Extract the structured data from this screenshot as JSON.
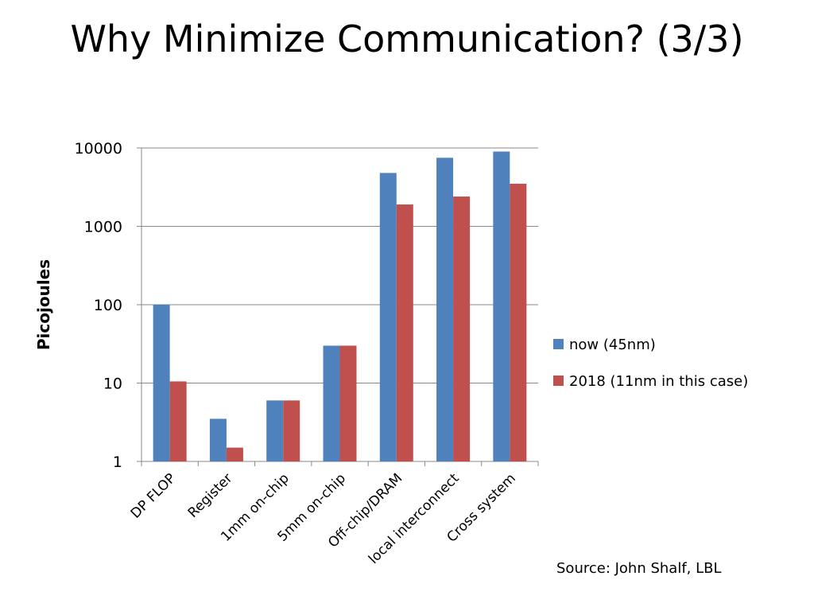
{
  "slide": {
    "title": "Why Minimize Communication? (3/3)",
    "source": "Source: John Shalf, LBL"
  },
  "chart_data": {
    "type": "bar",
    "scale": "log",
    "ylabel": "Picojoules",
    "ylim": [
      1,
      10000
    ],
    "yticks": [
      "1",
      "10",
      "100",
      "1000",
      "10000"
    ],
    "grid": true,
    "legend_position": "right",
    "categories": [
      "DP FLOP",
      "Register",
      "1mm on-chip",
      "5mm on-chip",
      "Off-chip/DRAM",
      "local interconnect",
      "Cross system"
    ],
    "series": [
      {
        "name": "now (45nm)",
        "color": "#4F81BD",
        "values": [
          100,
          3.5,
          6,
          30,
          4800,
          7500,
          9000
        ]
      },
      {
        "name": "2018 (11nm in this case)",
        "color": "#C0504D",
        "values": [
          10.5,
          1.5,
          6,
          30,
          1900,
          2400,
          3500
        ]
      }
    ]
  }
}
